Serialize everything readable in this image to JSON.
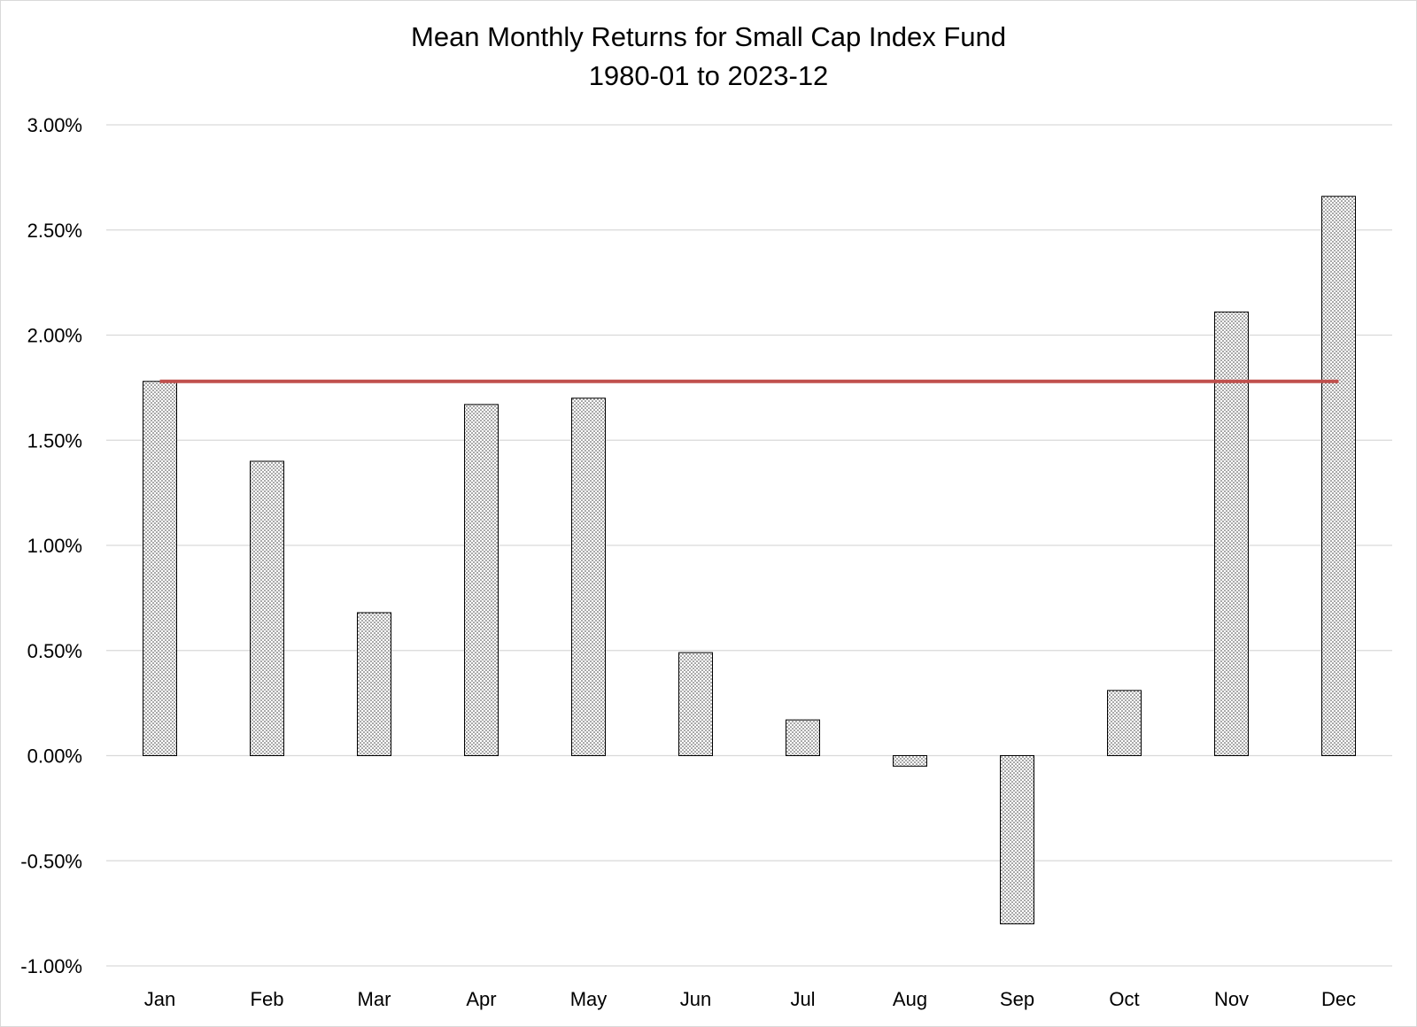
{
  "chart_data": {
    "type": "bar",
    "title": "Mean Monthly Returns for Small Cap Index Fund",
    "subtitle": "1980-01 to 2023-12",
    "xlabel": "",
    "ylabel": "",
    "categories": [
      "Jan",
      "Feb",
      "Mar",
      "Apr",
      "May",
      "Jun",
      "Jul",
      "Aug",
      "Sep",
      "Oct",
      "Nov",
      "Dec"
    ],
    "series": [
      {
        "values": [
          1.78,
          1.4,
          0.68,
          1.67,
          1.7,
          0.49,
          0.17,
          -0.05,
          -0.8,
          0.31,
          2.11,
          2.66
        ]
      }
    ],
    "reference_line": {
      "value": 1.78,
      "from": "Jan",
      "to": "Dec",
      "color": "#c0504d"
    },
    "ylim": [
      -1.0,
      3.0
    ],
    "yticks": [
      3.0,
      2.5,
      2.0,
      1.5,
      1.0,
      0.5,
      0.0,
      -0.5,
      -1.0
    ],
    "ytick_labels": [
      "3.00%",
      "2.50%",
      "2.00%",
      "1.50%",
      "1.00%",
      "0.50%",
      "0.00%",
      "-0.50%",
      "-1.00%"
    ],
    "grid": true,
    "legend": "none",
    "bar_fill": "dotted",
    "colors": {
      "gridline": "#d9d9d9",
      "bar_border": "#000000",
      "bar_dots": "#404040"
    }
  }
}
